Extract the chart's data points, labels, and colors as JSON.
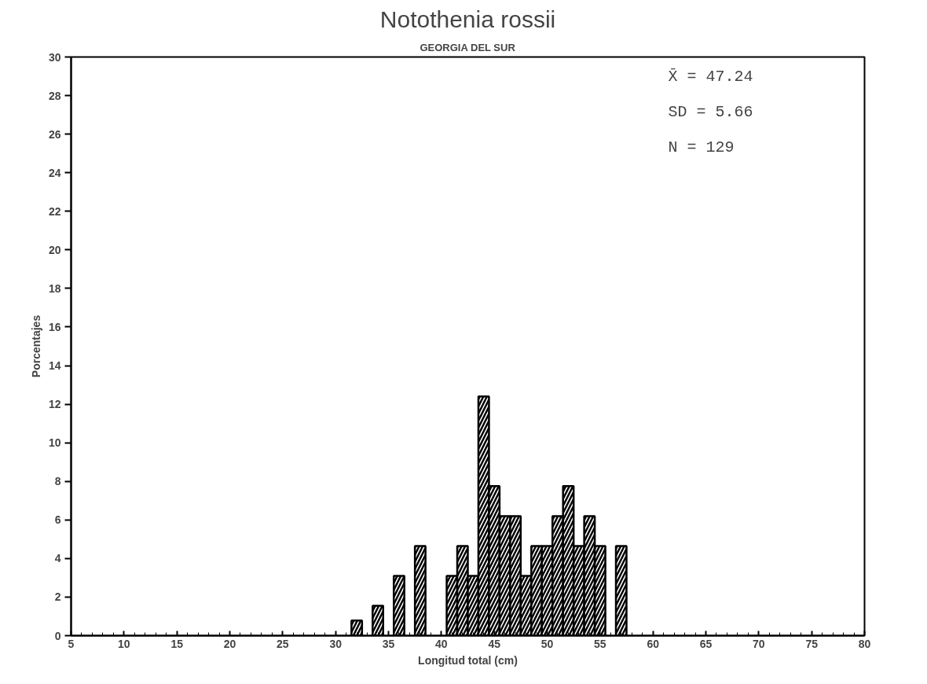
{
  "chart_data": {
    "type": "histogram",
    "title": "Notothenia rossii",
    "subtitle": "GEORGIA DEL SUR",
    "xlabel": "Longitud total (cm)",
    "ylabel": "Porcentajes",
    "bins": [
      31.5,
      32.5,
      33.5,
      34.5,
      35.5,
      36.5,
      37.5,
      38.5,
      39.5,
      40.5,
      41.5,
      42.5,
      43.5,
      44.5,
      45.5,
      46.5,
      47.5,
      48.5,
      49.5,
      50.5,
      51.5,
      52.5,
      53.5,
      54.5,
      55.5,
      56.5,
      57.5
    ],
    "values": [
      0.78,
      0,
      1.55,
      0,
      3.1,
      0,
      4.65,
      0,
      0,
      3.1,
      4.65,
      3.1,
      12.4,
      7.75,
      6.2,
      6.2,
      3.1,
      4.65,
      4.65,
      6.2,
      7.75,
      4.65,
      6.2,
      4.65,
      0,
      4.65
    ],
    "color": "#000000",
    "xlim": [
      5,
      80
    ],
    "xticks": [
      5,
      10,
      15,
      20,
      25,
      30,
      35,
      40,
      45,
      50,
      55,
      60,
      65,
      70,
      75,
      80
    ],
    "ylim": [
      0,
      30
    ],
    "yticks": [
      0,
      2,
      4,
      6,
      8,
      10,
      12,
      14,
      16,
      18,
      20,
      22,
      24,
      26,
      28,
      30
    ],
    "grid": false,
    "annotations": [
      "X̄ = 47.24",
      "SD = 5.66",
      "N = 129"
    ]
  }
}
